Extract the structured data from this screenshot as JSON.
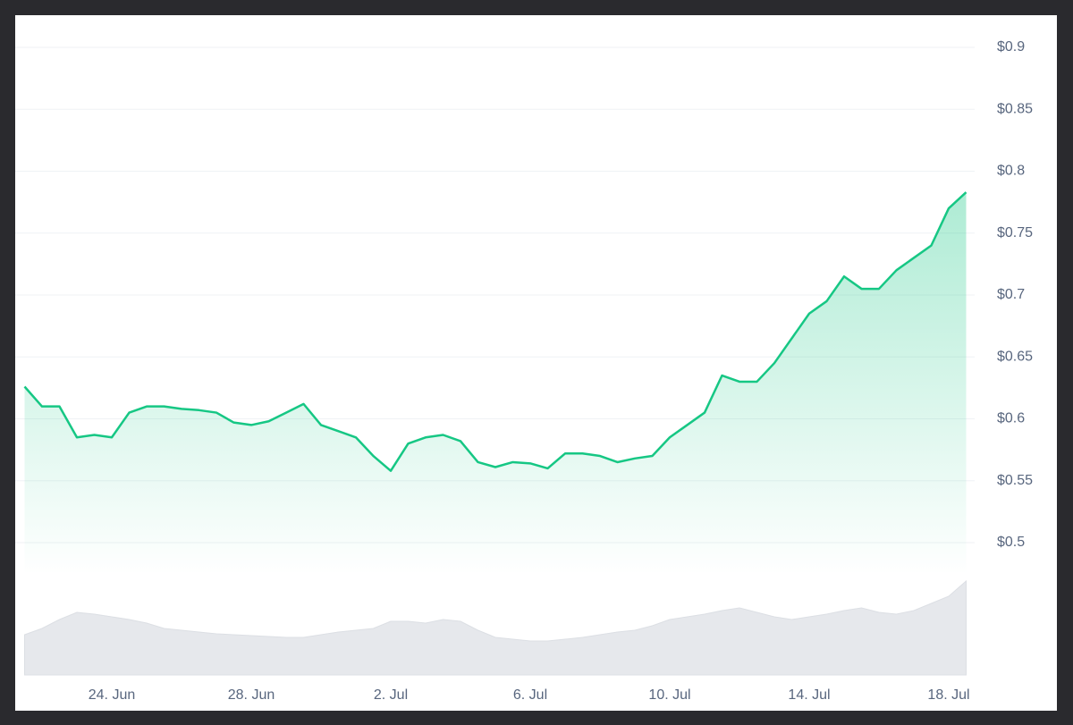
{
  "chart_data": [
    {
      "type": "line",
      "categories": [
        null,
        null,
        null,
        null,
        null,
        "24. Jun",
        null,
        null,
        null,
        null,
        null,
        null,
        null,
        "28. Jun",
        null,
        null,
        null,
        null,
        null,
        null,
        null,
        "2. Jul",
        null,
        null,
        null,
        null,
        null,
        null,
        null,
        "6. Jul",
        null,
        null,
        null,
        null,
        null,
        null,
        null,
        "10. Jul",
        null,
        null,
        null,
        null,
        null,
        null,
        null,
        "14. Jul",
        null,
        null,
        null,
        null,
        null,
        null,
        null,
        "18. Jul",
        null
      ],
      "values": [
        0.626,
        0.61,
        0.61,
        0.585,
        0.587,
        0.585,
        0.605,
        0.61,
        0.61,
        0.608,
        0.607,
        0.605,
        0.597,
        0.595,
        0.598,
        0.605,
        0.612,
        0.595,
        0.59,
        0.585,
        0.57,
        0.558,
        0.58,
        0.585,
        0.587,
        0.582,
        0.565,
        0.561,
        0.565,
        0.564,
        0.56,
        0.572,
        0.572,
        0.57,
        0.565,
        0.568,
        0.57,
        0.585,
        0.595,
        0.605,
        0.635,
        0.63,
        0.63,
        0.645,
        0.665,
        0.685,
        0.695,
        0.715,
        0.705,
        0.705,
        0.72,
        0.73,
        0.74,
        0.77,
        0.783
      ],
      "color": "#16c784",
      "ylim": [
        0.474,
        0.926
      ],
      "yticks": [
        {
          "value": 0.5,
          "label": "$0.5"
        },
        {
          "value": 0.55,
          "label": "$0.55"
        },
        {
          "value": 0.6,
          "label": "$0.6"
        },
        {
          "value": 0.65,
          "label": "$0.65"
        },
        {
          "value": 0.7,
          "label": "$0.7"
        },
        {
          "value": 0.75,
          "label": "$0.75"
        },
        {
          "value": 0.8,
          "label": "$0.8"
        },
        {
          "value": 0.85,
          "label": "$0.85"
        },
        {
          "value": 0.9,
          "label": "$0.9"
        }
      ],
      "grid": true
    },
    {
      "type": "area",
      "values": [
        45,
        52,
        62,
        70,
        68,
        65,
        62,
        58,
        52,
        50,
        48,
        46,
        45,
        44,
        43,
        42,
        42,
        45,
        48,
        50,
        52,
        60,
        60,
        58,
        62,
        60,
        50,
        42,
        40,
        38,
        38,
        40,
        42,
        45,
        48,
        50,
        55,
        62,
        65,
        68,
        72,
        75,
        70,
        65,
        62,
        65,
        68,
        72,
        75,
        70,
        68,
        72,
        80,
        88,
        105
      ],
      "color": "#e6e8ec",
      "ylim": [
        0,
        110
      ]
    }
  ]
}
